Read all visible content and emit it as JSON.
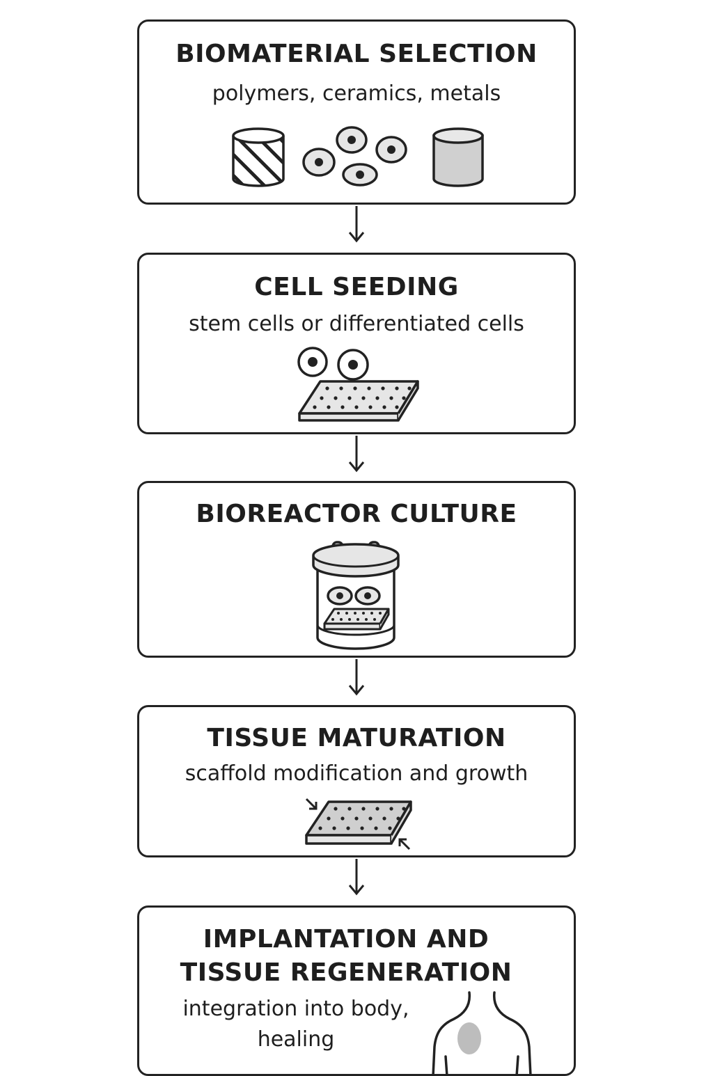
{
  "steps": [
    {
      "title": "BIOMATERIAL SELECTION",
      "subtitle": "polymers, ceramics, metals",
      "icons": [
        "striped-cylinder-icon",
        "cells-cluster-icon",
        "grey-cylinder-icon"
      ]
    },
    {
      "title": "CELL SEEDING",
      "subtitle": "stem cells or differentiated cells",
      "icons": [
        "cells-on-scaffold-icon"
      ]
    },
    {
      "title": "BIOREACTOR CULTURE",
      "icons": [
        "bioreactor-icon"
      ]
    },
    {
      "title": "TISSUE MATURATION",
      "subtitle": "scaffold modification and growth",
      "icons": [
        "compressed-scaffold-icon"
      ]
    },
    {
      "title_lines": [
        "IMPLANTATION AND",
        "TISSUE REGENERATION"
      ],
      "subtitle_lines": [
        "integration into body,",
        "healing"
      ],
      "icons": [
        "human-torso-implant-icon"
      ]
    }
  ],
  "colors": {
    "stroke": "#222222",
    "text": "#1e1e1e",
    "light_fill": "#e6e6e6",
    "mid_fill": "#cfcfcf",
    "implant_fill": "#bdbdbd",
    "background": "#ffffff"
  }
}
